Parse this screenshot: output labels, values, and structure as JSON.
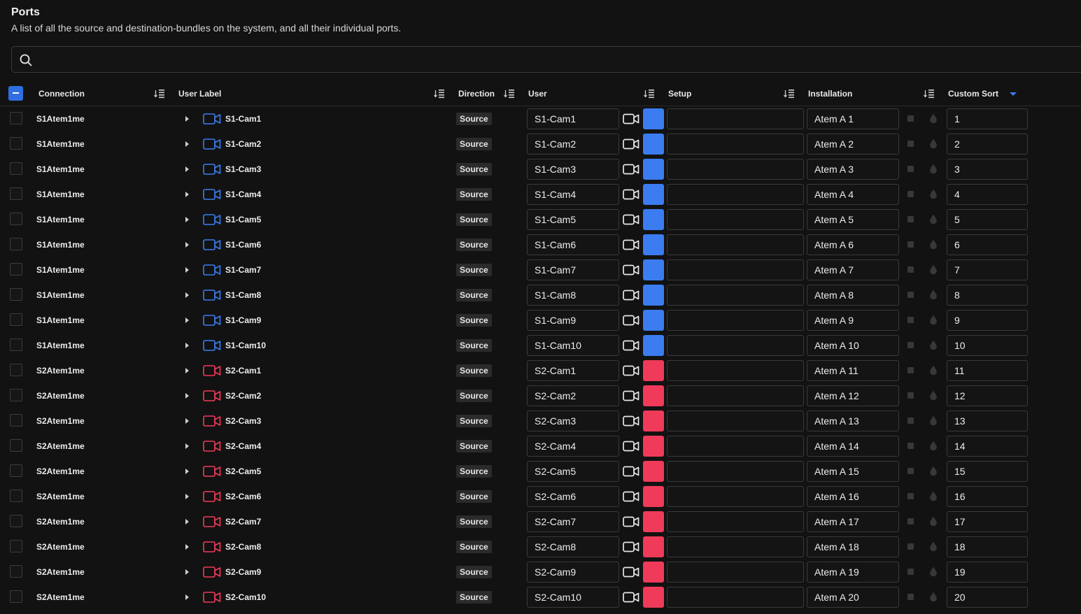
{
  "page": {
    "title": "Ports",
    "subtitle": "A list of all the source and destination-bundles on the system, and all their individual ports."
  },
  "search": {
    "value": "",
    "placeholder": ""
  },
  "columns": {
    "connection": "Connection",
    "user_label": "User Label",
    "direction": "Direction",
    "user": "User",
    "setup": "Setup",
    "installation": "Installation",
    "custom_sort": "Custom Sort"
  },
  "colors": {
    "s1": "#3b7cf0",
    "s2": "#f03a5a",
    "accent": "#2f6fe0"
  },
  "rows": [
    {
      "connection": "S1Atem1me",
      "user_label": "S1-Cam1",
      "direction": "Source",
      "user": "S1-Cam1",
      "setup": "",
      "installation": "Atem A 1",
      "custom_sort": "1",
      "color": "#3b7cf0"
    },
    {
      "connection": "S1Atem1me",
      "user_label": "S1-Cam2",
      "direction": "Source",
      "user": "S1-Cam2",
      "setup": "",
      "installation": "Atem A 2",
      "custom_sort": "2",
      "color": "#3b7cf0"
    },
    {
      "connection": "S1Atem1me",
      "user_label": "S1-Cam3",
      "direction": "Source",
      "user": "S1-Cam3",
      "setup": "",
      "installation": "Atem A 3",
      "custom_sort": "3",
      "color": "#3b7cf0"
    },
    {
      "connection": "S1Atem1me",
      "user_label": "S1-Cam4",
      "direction": "Source",
      "user": "S1-Cam4",
      "setup": "",
      "installation": "Atem A 4",
      "custom_sort": "4",
      "color": "#3b7cf0"
    },
    {
      "connection": "S1Atem1me",
      "user_label": "S1-Cam5",
      "direction": "Source",
      "user": "S1-Cam5",
      "setup": "",
      "installation": "Atem A 5",
      "custom_sort": "5",
      "color": "#3b7cf0"
    },
    {
      "connection": "S1Atem1me",
      "user_label": "S1-Cam6",
      "direction": "Source",
      "user": "S1-Cam6",
      "setup": "",
      "installation": "Atem A 6",
      "custom_sort": "6",
      "color": "#3b7cf0"
    },
    {
      "connection": "S1Atem1me",
      "user_label": "S1-Cam7",
      "direction": "Source",
      "user": "S1-Cam7",
      "setup": "",
      "installation": "Atem A 7",
      "custom_sort": "7",
      "color": "#3b7cf0"
    },
    {
      "connection": "S1Atem1me",
      "user_label": "S1-Cam8",
      "direction": "Source",
      "user": "S1-Cam8",
      "setup": "",
      "installation": "Atem A 8",
      "custom_sort": "8",
      "color": "#3b7cf0"
    },
    {
      "connection": "S1Atem1me",
      "user_label": "S1-Cam9",
      "direction": "Source",
      "user": "S1-Cam9",
      "setup": "",
      "installation": "Atem A 9",
      "custom_sort": "9",
      "color": "#3b7cf0"
    },
    {
      "connection": "S1Atem1me",
      "user_label": "S1-Cam10",
      "direction": "Source",
      "user": "S1-Cam10",
      "setup": "",
      "installation": "Atem A 10",
      "custom_sort": "10",
      "color": "#3b7cf0"
    },
    {
      "connection": "S2Atem1me",
      "user_label": "S2-Cam1",
      "direction": "Source",
      "user": "S2-Cam1",
      "setup": "",
      "installation": "Atem A 11",
      "custom_sort": "11",
      "color": "#f03a5a"
    },
    {
      "connection": "S2Atem1me",
      "user_label": "S2-Cam2",
      "direction": "Source",
      "user": "S2-Cam2",
      "setup": "",
      "installation": "Atem A 12",
      "custom_sort": "12",
      "color": "#f03a5a"
    },
    {
      "connection": "S2Atem1me",
      "user_label": "S2-Cam3",
      "direction": "Source",
      "user": "S2-Cam3",
      "setup": "",
      "installation": "Atem A 13",
      "custom_sort": "13",
      "color": "#f03a5a"
    },
    {
      "connection": "S2Atem1me",
      "user_label": "S2-Cam4",
      "direction": "Source",
      "user": "S2-Cam4",
      "setup": "",
      "installation": "Atem A 14",
      "custom_sort": "14",
      "color": "#f03a5a"
    },
    {
      "connection": "S2Atem1me",
      "user_label": "S2-Cam5",
      "direction": "Source",
      "user": "S2-Cam5",
      "setup": "",
      "installation": "Atem A 15",
      "custom_sort": "15",
      "color": "#f03a5a"
    },
    {
      "connection": "S2Atem1me",
      "user_label": "S2-Cam6",
      "direction": "Source",
      "user": "S2-Cam6",
      "setup": "",
      "installation": "Atem A 16",
      "custom_sort": "16",
      "color": "#f03a5a"
    },
    {
      "connection": "S2Atem1me",
      "user_label": "S2-Cam7",
      "direction": "Source",
      "user": "S2-Cam7",
      "setup": "",
      "installation": "Atem A 17",
      "custom_sort": "17",
      "color": "#f03a5a"
    },
    {
      "connection": "S2Atem1me",
      "user_label": "S2-Cam8",
      "direction": "Source",
      "user": "S2-Cam8",
      "setup": "",
      "installation": "Atem A 18",
      "custom_sort": "18",
      "color": "#f03a5a"
    },
    {
      "connection": "S2Atem1me",
      "user_label": "S2-Cam9",
      "direction": "Source",
      "user": "S2-Cam9",
      "setup": "",
      "installation": "Atem A 19",
      "custom_sort": "19",
      "color": "#f03a5a"
    },
    {
      "connection": "S2Atem1me",
      "user_label": "S2-Cam10",
      "direction": "Source",
      "user": "S2-Cam10",
      "setup": "",
      "installation": "Atem A 20",
      "custom_sort": "20",
      "color": "#f03a5a"
    }
  ]
}
